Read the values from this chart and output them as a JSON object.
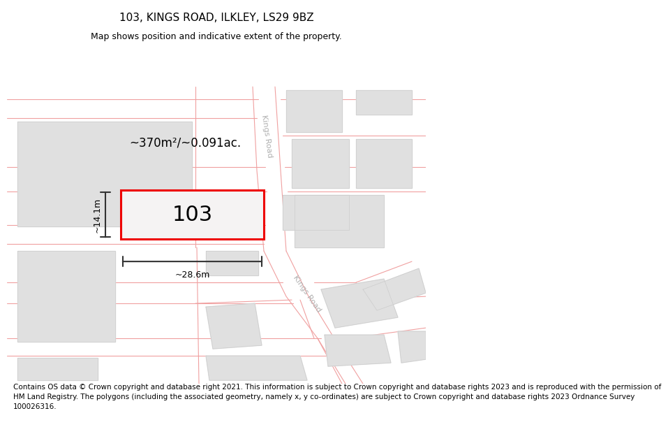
{
  "title": "103, KINGS ROAD, ILKLEY, LS29 9BZ",
  "subtitle": "Map shows position and indicative extent of the property.",
  "footer_line1": "Contains OS data © Crown copyright and database right 2021. This information is subject to Crown copyright and database rights 2023 and is reproduced with the permission of",
  "footer_line2": "HM Land Registry. The polygons (including the associated geometry, namely x, y co-ordinates) are subject to Crown copyright and database rights 2023 Ordnance Survey",
  "footer_line3": "100026316.",
  "map_bg": "#f7f6f6",
  "road_color": "#f0a0a0",
  "road_lw": 0.8,
  "building_fill": "#e0e0e0",
  "building_edge": "#cccccc",
  "road_band_color": "#ffffff",
  "highlight_color": "#ee0000",
  "highlight_fill": "#f5f3f3",
  "area_text": "~370m²/~0.091ac.",
  "property_label": "103",
  "width_label": "~28.6m",
  "height_label": "~14.1m",
  "road_label": "Kings Road",
  "title_fontsize": 11,
  "subtitle_fontsize": 9,
  "footer_fontsize": 7.5,
  "property_fontsize": 22,
  "measure_fontsize": 9,
  "area_fontsize": 12,
  "road_font_color": "#b0b0b0",
  "road_fontsize": 8
}
